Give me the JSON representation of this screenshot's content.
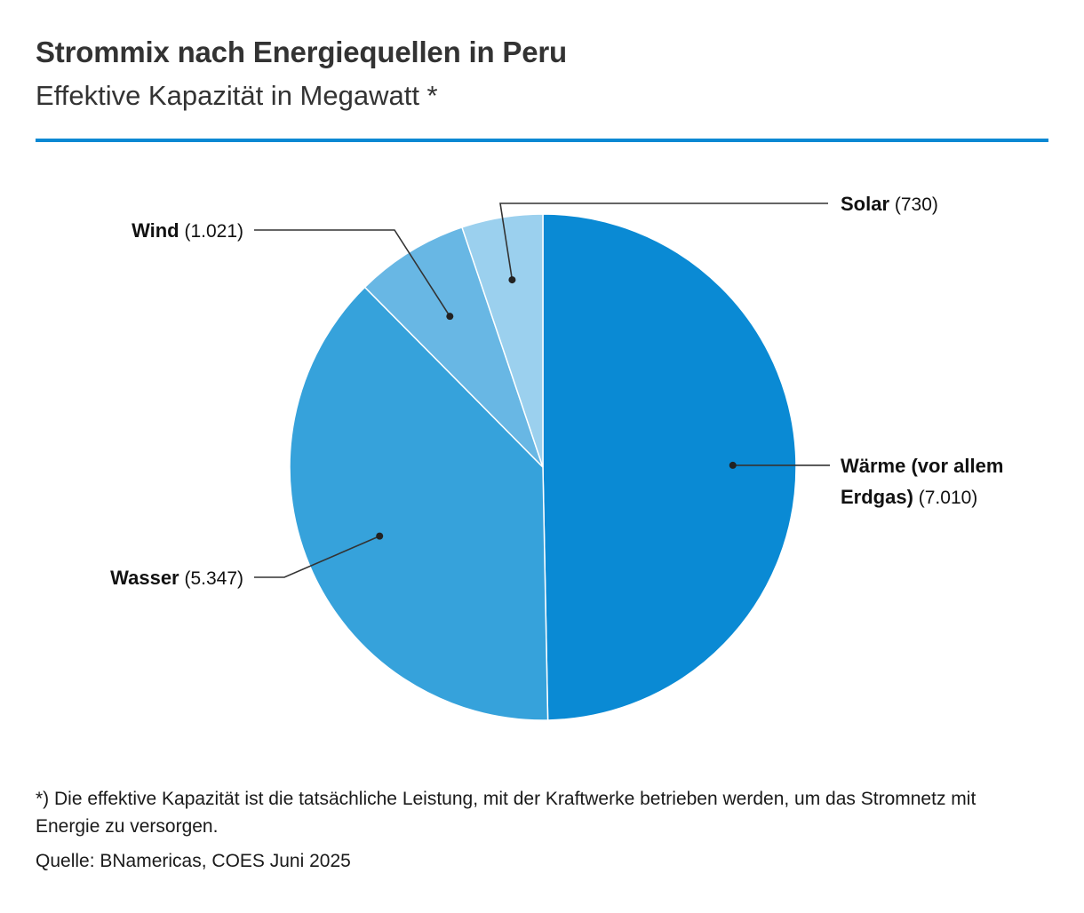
{
  "header": {
    "title": "Strommix nach Energiequellen in Peru",
    "subtitle": "Effektive Kapazität in Megawatt *"
  },
  "chart_data": {
    "type": "pie",
    "title": "Strommix nach Energiequellen in Peru",
    "subtitle": "Effektive Kapazität in Megawatt *",
    "unit": "Megawatt",
    "start": "12 o'clock, clockwise",
    "slices": [
      {
        "name_lines": [
          "Wärme (vor allem",
          "Erdgas)"
        ],
        "value": 7010,
        "value_label": "(7.010)",
        "color": "#0a8ad4"
      },
      {
        "name_lines": [
          "Wasser"
        ],
        "value": 5347,
        "value_label": "(5.347)",
        "color": "#36a2db"
      },
      {
        "name_lines": [
          "Wind"
        ],
        "value": 1021,
        "value_label": "(1.021)",
        "color": "#68b7e4"
      },
      {
        "name_lines": [
          "Solar"
        ],
        "value": 730,
        "value_label": "(730)",
        "color": "#9bd0ee"
      }
    ]
  },
  "footer": {
    "note": "*) Die effektive Kapazität ist die tatsächliche Leistung, mit der Kraftwerke betrieben werden, um das Stromnetz mit Energie zu versorgen.",
    "source": "Quelle: BNamericas, COES Juni 2025"
  }
}
